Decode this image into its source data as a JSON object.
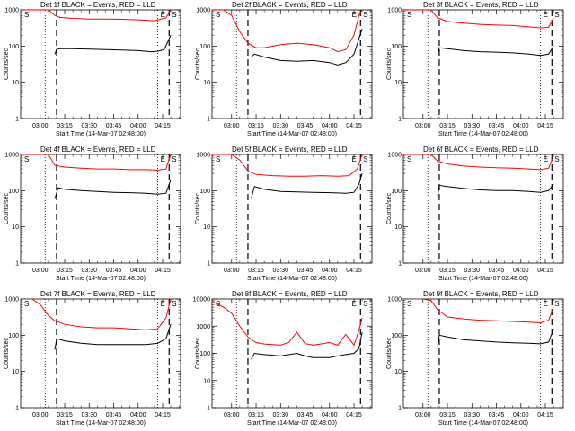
{
  "chart_data": {
    "type": "line",
    "yscale": "log",
    "ylim": [
      1,
      1000
    ],
    "yticks": [
      "1",
      "10",
      "100",
      "1000"
    ],
    "xlim": [
      "02:48:00",
      "04:26:00"
    ],
    "xticks": [
      "03:00",
      "03:15",
      "03:30",
      "03:45",
      "04:00",
      "04:15"
    ],
    "xlabel": "Start Time (14-Mar-07 02:48:00)",
    "ylabel": "Counts/sec",
    "colors": {
      "events": "#000000",
      "lld": "#ff0000"
    },
    "panels": [
      {
        "title": "Det 1f BLACK = Events, RED = LLD",
        "markers": [
          "S",
          "E",
          "S"
        ],
        "series": [
          {
            "color": "#000000",
            "x": [
              "03:09",
              "03:10",
              "03:12",
              "03:20",
              "03:30",
              "03:40",
              "03:50",
              "04:00",
              "04:08",
              "04:12",
              "04:16",
              "04:20"
            ],
            "y": [
              60,
              80,
              85,
              85,
              82,
              80,
              78,
              75,
              70,
              72,
              80,
              200
            ]
          },
          {
            "color": "#ff0000",
            "x": [
              "02:48",
              "03:00",
              "03:05",
              "03:09",
              "03:12",
              "03:20",
              "03:30",
              "03:40",
              "03:50",
              "04:00",
              "04:10",
              "04:17",
              "04:20"
            ],
            "y": [
              1000,
              1000,
              1000,
              700,
              620,
              580,
              560,
              560,
              550,
              530,
              500,
              600,
              1000
            ]
          }
        ]
      },
      {
        "title": "Det 2f BLACK = Events, RED = LLD",
        "markers": [
          "S",
          "E",
          "S"
        ],
        "series": [
          {
            "color": "#000000",
            "x": [
              "03:12",
              "03:14",
              "03:20",
              "03:30",
              "03:40",
              "03:50",
              "04:00",
              "04:05",
              "04:10",
              "04:15",
              "04:20"
            ],
            "y": [
              50,
              60,
              50,
              40,
              38,
              40,
              35,
              30,
              35,
              60,
              300
            ]
          },
          {
            "color": "#ff0000",
            "x": [
              "02:48",
              "02:55",
              "03:00",
              "03:05",
              "03:10",
              "03:15",
              "03:20",
              "03:30",
              "03:40",
              "03:50",
              "04:00",
              "04:05",
              "04:10",
              "04:15",
              "04:18",
              "04:20"
            ],
            "y": [
              1000,
              1000,
              700,
              250,
              120,
              90,
              90,
              110,
              120,
              110,
              90,
              70,
              80,
              200,
              700,
              1000
            ]
          }
        ]
      },
      {
        "title": "Det 3f BLACK = Events, RED = LLD",
        "markers": [
          "S",
          "E",
          "S"
        ],
        "series": [
          {
            "color": "#000000",
            "x": [
              "03:09",
              "03:10",
              "03:15",
              "03:25",
              "03:35",
              "03:45",
              "03:55",
              "04:05",
              "04:12",
              "04:17",
              "04:20"
            ],
            "y": [
              60,
              90,
              85,
              75,
              70,
              68,
              65,
              60,
              55,
              60,
              100
            ]
          },
          {
            "color": "#ff0000",
            "x": [
              "02:48",
              "03:00",
              "03:05",
              "03:09",
              "03:15",
              "03:25",
              "03:35",
              "03:45",
              "03:55",
              "04:05",
              "04:12",
              "04:17",
              "04:20"
            ],
            "y": [
              1000,
              1000,
              1000,
              600,
              480,
              430,
              400,
              380,
              370,
              340,
              320,
              330,
              600
            ]
          }
        ]
      },
      {
        "title": "Det 4f BLACK = Events, RED = LLD",
        "markers": [
          "S",
          "E",
          "S"
        ],
        "series": [
          {
            "color": "#000000",
            "x": [
              "03:09",
              "03:11",
              "03:15",
              "03:25",
              "03:35",
              "03:45",
              "03:55",
              "04:05",
              "04:12",
              "04:17",
              "04:20"
            ],
            "y": [
              60,
              120,
              110,
              100,
              95,
              90,
              88,
              85,
              80,
              85,
              200
            ]
          },
          {
            "color": "#ff0000",
            "x": [
              "02:48",
              "03:00",
              "03:05",
              "03:09",
              "03:15",
              "03:25",
              "03:35",
              "03:45",
              "03:55",
              "04:05",
              "04:12",
              "04:17",
              "04:20"
            ],
            "y": [
              1000,
              1000,
              1000,
              500,
              450,
              420,
              400,
              400,
              380,
              380,
              370,
              400,
              1000
            ]
          }
        ]
      },
      {
        "title": "Det 5f BLACK = Events, RED = LLD",
        "markers": [
          "S",
          "E",
          "S"
        ],
        "series": [
          {
            "color": "#000000",
            "x": [
              "03:12",
              "03:14",
              "03:20",
              "03:30",
              "03:40",
              "03:50",
              "04:00",
              "04:10",
              "04:15",
              "04:18",
              "04:20"
            ],
            "y": [
              60,
              130,
              110,
              95,
              92,
              90,
              88,
              85,
              90,
              150,
              300
            ]
          },
          {
            "color": "#ff0000",
            "x": [
              "02:48",
              "02:55",
              "03:00",
              "03:05",
              "03:10",
              "03:15",
              "03:25",
              "03:35",
              "03:45",
              "03:55",
              "04:05",
              "04:12",
              "04:17",
              "04:20"
            ],
            "y": [
              1000,
              1000,
              1000,
              700,
              350,
              280,
              260,
              250,
              250,
              260,
              250,
              260,
              400,
              1000
            ]
          }
        ]
      },
      {
        "title": "Det 6f BLACK = Events, RED = LLD",
        "markers": [
          "S",
          "E",
          "S"
        ],
        "series": [
          {
            "color": "#000000",
            "x": [
              "03:09",
              "03:10",
              "03:15",
              "03:25",
              "03:35",
              "03:45",
              "03:55",
              "04:05",
              "04:12",
              "04:17",
              "04:20"
            ],
            "y": [
              70,
              140,
              130,
              115,
              105,
              100,
              100,
              95,
              90,
              100,
              150
            ]
          },
          {
            "color": "#ff0000",
            "x": [
              "02:48",
              "03:00",
              "03:05",
              "03:09",
              "03:15",
              "03:25",
              "03:35",
              "03:45",
              "03:55",
              "04:05",
              "04:12",
              "04:17",
              "04:20"
            ],
            "y": [
              1000,
              1000,
              1000,
              650,
              550,
              480,
              450,
              430,
              420,
              400,
              380,
              420,
              900
            ]
          }
        ]
      },
      {
        "title": "Det 7f BLACK = Events, RED = LLD",
        "markers": [
          "S",
          "E",
          "S"
        ],
        "series": [
          {
            "color": "#000000",
            "x": [
              "03:09",
              "03:10",
              "03:15",
              "03:25",
              "03:35",
              "03:45",
              "03:55",
              "04:05",
              "04:12",
              "04:17",
              "04:20"
            ],
            "y": [
              40,
              80,
              70,
              60,
              55,
              55,
              55,
              55,
              60,
              80,
              200
            ]
          },
          {
            "color": "#ff0000",
            "x": [
              "02:48",
              "02:55",
              "03:00",
              "03:05",
              "03:09",
              "03:15",
              "03:25",
              "03:35",
              "03:45",
              "03:55",
              "04:05",
              "04:12",
              "04:17",
              "04:20"
            ],
            "y": [
              1000,
              1000,
              700,
              350,
              250,
              200,
              170,
              160,
              160,
              150,
              140,
              150,
              300,
              1000
            ]
          }
        ]
      },
      {
        "title": "Det 8f BLACK = Events, RED = LLD",
        "markers": [
          "S",
          "E",
          "S"
        ],
        "ylim": [
          1,
          10000
        ],
        "yticks": [
          "1",
          "10",
          "100",
          "1000",
          "10000"
        ],
        "series": [
          {
            "color": "#000000",
            "x": [
              "03:12",
              "03:14",
              "03:20",
              "03:30",
              "03:40",
              "03:45",
              "03:50",
              "04:00",
              "04:05",
              "04:10",
              "04:15",
              "04:18",
              "04:20"
            ],
            "y": [
              60,
              100,
              90,
              80,
              100,
              80,
              70,
              70,
              80,
              90,
              100,
              150,
              600
            ]
          },
          {
            "color": "#ff0000",
            "x": [
              "02:48",
              "02:55",
              "03:00",
              "03:05",
              "03:10",
              "03:15",
              "03:20",
              "03:30",
              "03:35",
              "03:40",
              "03:45",
              "03:50",
              "04:00",
              "04:05",
              "04:10",
              "04:15",
              "04:18",
              "04:20"
            ],
            "y": [
              8000,
              5000,
              3000,
              1000,
              400,
              250,
              220,
              200,
              250,
              600,
              230,
              200,
              250,
              200,
              500,
              200,
              700,
              2000
            ]
          }
        ]
      },
      {
        "title": "Det 9f BLACK = Events, RED = LLD",
        "markers": [
          "S",
          "E",
          "S"
        ],
        "series": [
          {
            "color": "#000000",
            "x": [
              "03:09",
              "03:10",
              "03:15",
              "03:25",
              "03:35",
              "03:45",
              "03:55",
              "04:05",
              "04:12",
              "04:17",
              "04:20"
            ],
            "y": [
              50,
              100,
              90,
              75,
              70,
              65,
              62,
              60,
              58,
              65,
              150
            ]
          },
          {
            "color": "#ff0000",
            "x": [
              "02:48",
              "03:00",
              "03:05",
              "03:09",
              "03:15",
              "03:25",
              "03:35",
              "03:45",
              "03:55",
              "04:05",
              "04:12",
              "04:17",
              "04:20"
            ],
            "y": [
              1000,
              1000,
              900,
              500,
              320,
              280,
              260,
              250,
              240,
              230,
              220,
              260,
              600
            ]
          }
        ]
      }
    ]
  }
}
